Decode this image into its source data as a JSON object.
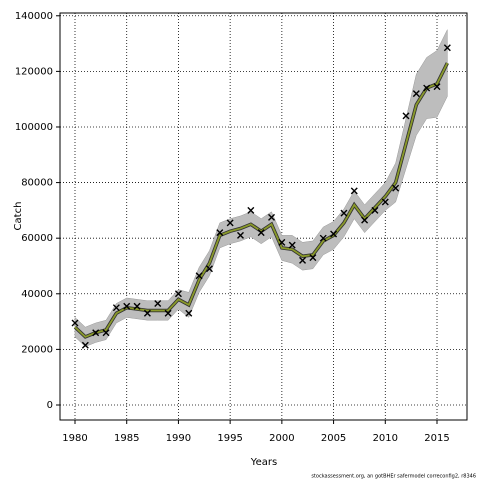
{
  "chart_data": {
    "type": "line",
    "x_label": "Years",
    "y_label": "Catch",
    "annotation": "stockassessment.org, an gotBHEr safermodel correconfig2, r8346",
    "x": [
      1980,
      1981,
      1982,
      1983,
      1984,
      1985,
      1986,
      1987,
      1988,
      1989,
      1990,
      1991,
      1992,
      1993,
      1994,
      1995,
      1996,
      1997,
      1998,
      1999,
      2000,
      2001,
      2002,
      2003,
      2004,
      2005,
      2006,
      2007,
      2008,
      2009,
      2010,
      2011,
      2012,
      2013,
      2014,
      2015,
      2016
    ],
    "observed": {
      "color": "#000000",
      "values": [
        29500,
        21500,
        26000,
        26000,
        35000,
        35500,
        35500,
        33000,
        36500,
        33000,
        40000,
        33000,
        46500,
        49000,
        62000,
        65500,
        61000,
        70000,
        62000,
        67500,
        58500,
        57500,
        52000,
        53000,
        60000,
        61500,
        69000,
        77000,
        66500,
        70000,
        73000,
        78000,
        104000,
        112000,
        114000,
        114500,
        128500
      ]
    },
    "series": [
      {
        "color": "#8a9a2a",
        "values": [
          28000,
          24500,
          26000,
          27000,
          33000,
          35000,
          34500,
          34000,
          34000,
          34000,
          38000,
          36000,
          45000,
          51000,
          61000,
          62500,
          63500,
          65000,
          62500,
          65000,
          56500,
          56000,
          53500,
          54000,
          59000,
          61000,
          65500,
          72000,
          67000,
          71000,
          75000,
          80000,
          94000,
          108000,
          114000,
          115500,
          123000
        ]
      }
    ],
    "band": {
      "color": "#bdbdbd",
      "upper": [
        31500,
        28000,
        29500,
        30500,
        36500,
        38500,
        38000,
        37500,
        37500,
        37500,
        41500,
        40500,
        49500,
        55500,
        65500,
        67000,
        68000,
        69500,
        67000,
        69500,
        61000,
        61000,
        58500,
        59000,
        64000,
        66000,
        70500,
        77000,
        72000,
        76000,
        80000,
        87000,
        103000,
        119000,
        125000,
        127500,
        135000
      ],
      "lower": [
        24500,
        21000,
        22500,
        23500,
        29500,
        31500,
        31000,
        30500,
        30500,
        30500,
        34500,
        31500,
        40500,
        46500,
        56500,
        58000,
        59000,
        60500,
        58000,
        60500,
        52000,
        51000,
        48500,
        49000,
        54000,
        56000,
        60500,
        67000,
        62000,
        66000,
        70000,
        73000,
        85000,
        97000,
        103000,
        103500,
        111000
      ]
    },
    "xlim": [
      1978.55,
      2017.9
    ],
    "ylim": [
      -5400,
      141000
    ],
    "xticks": [
      1980,
      1985,
      1990,
      1995,
      2000,
      2005,
      2010,
      2015
    ],
    "yticks": [
      0,
      20000,
      40000,
      60000,
      80000,
      100000,
      120000,
      140000
    ],
    "grid": true
  }
}
